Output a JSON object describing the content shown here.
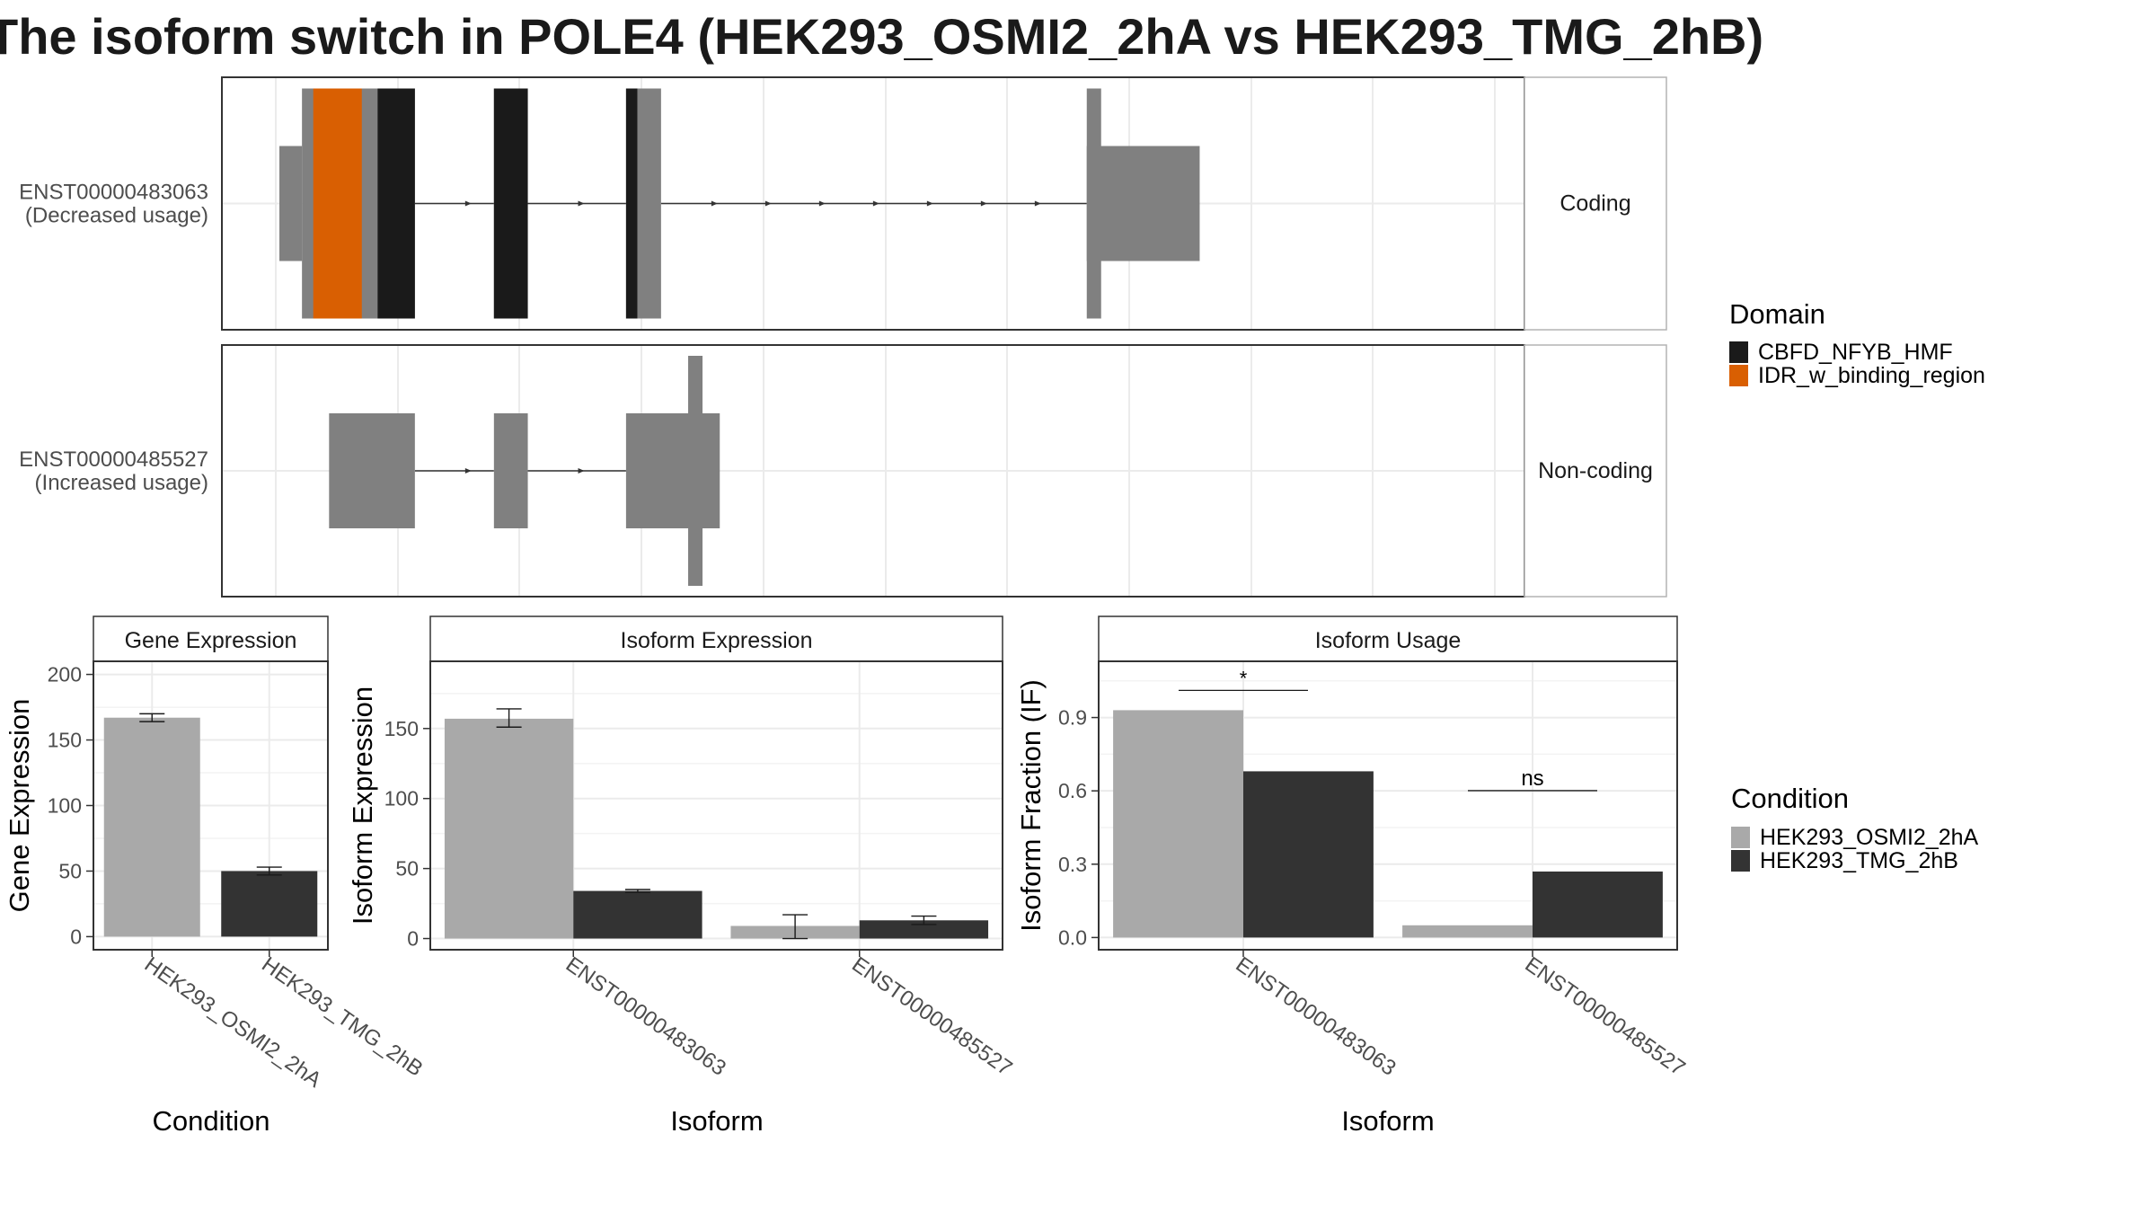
{
  "title": "The isoform switch in POLE4 (HEK293_OSMI2_2hA vs HEK293_TMG_2hB)",
  "colors": {
    "CBFD_NFYB_HMF": "#1a1a1a",
    "IDR_w_binding_region": "#d95f02",
    "exon": "#808080",
    "HEK293_OSMI2_2hA": "#a9a9a9",
    "HEK293_TMG_2hB": "#333333"
  },
  "transcripts": [
    {
      "id": "ENST00000483063",
      "usage": "(Decreased usage)",
      "strip": "Coding",
      "coding": true,
      "exons": [
        {
          "start": 0,
          "end": 20,
          "cds": false
        },
        {
          "start": 20,
          "end": 120,
          "cds": true
        },
        {
          "start": 190,
          "end": 220,
          "cds": true
        },
        {
          "start": 307,
          "end": 338,
          "cds": true
        },
        {
          "start": 715,
          "end": 815,
          "cds": false
        }
      ],
      "domains": [
        {
          "name": "IDR_w_binding_region",
          "start": 30,
          "end": 73
        },
        {
          "name": "CBFD_NFYB_HMF",
          "start": 87,
          "end": 120
        },
        {
          "name": "CBFD_NFYB_HMF",
          "start": 190,
          "end": 220
        },
        {
          "name": "CBFD_NFYB_HMF",
          "start": 307,
          "end": 317
        }
      ]
    },
    {
      "id": "ENST00000485527",
      "usage": "(Increased usage)",
      "strip": "Non-coding",
      "coding": false,
      "exons": [
        {
          "start": 44,
          "end": 120,
          "cds": false
        },
        {
          "start": 190,
          "end": 220,
          "cds": false
        },
        {
          "start": 307,
          "end": 390,
          "cds": false
        }
      ],
      "domains": []
    }
  ],
  "legends": {
    "domain_title": "Domain",
    "domain_items": [
      "CBFD_NFYB_HMF",
      "IDR_w_binding_region"
    ],
    "condition_title": "Condition",
    "condition_items": [
      "HEK293_OSMI2_2hA",
      "HEK293_TMG_2hB"
    ]
  },
  "chart_data": [
    {
      "type": "bar",
      "title": "Gene Expression",
      "xlabel": "Condition",
      "ylabel": "Gene Expression",
      "categories": [
        "HEK293_OSMI2_2hA",
        "HEK293_TMG_2hB"
      ],
      "values": [
        167,
        50
      ],
      "errors": [
        [
          164,
          170
        ],
        [
          47,
          53
        ]
      ],
      "ylim": [
        -10,
        210
      ],
      "yticks": [
        0,
        50,
        100,
        150,
        200
      ],
      "grid": true
    },
    {
      "type": "bar",
      "title": "Isoform Expression",
      "xlabel": "Isoform",
      "ylabel": "Isoform Expression",
      "categories": [
        "ENST00000483063",
        "ENST00000485527"
      ],
      "series": [
        {
          "name": "HEK293_OSMI2_2hA",
          "values": [
            157,
            9
          ],
          "errors": [
            [
              151,
              164
            ],
            [
              0,
              17
            ]
          ]
        },
        {
          "name": "HEK293_TMG_2hB",
          "values": [
            34,
            13
          ],
          "errors": [
            [
              33,
              35
            ],
            [
              10,
              16
            ]
          ]
        }
      ],
      "ylim": [
        -8,
        198
      ],
      "yticks": [
        0,
        50,
        100,
        150
      ],
      "grid": true
    },
    {
      "type": "bar",
      "title": "Isoform Usage",
      "xlabel": "Isoform",
      "ylabel": "Isoform Fraction (IF)",
      "categories": [
        "ENST00000483063",
        "ENST00000485527"
      ],
      "series": [
        {
          "name": "HEK293_OSMI2_2hA",
          "values": [
            0.93,
            0.05
          ]
        },
        {
          "name": "HEK293_TMG_2hB",
          "values": [
            0.68,
            0.27
          ]
        }
      ],
      "significance": [
        "*",
        "ns"
      ],
      "ylim": [
        -0.05,
        1.13
      ],
      "yticks": [
        0.0,
        0.3,
        0.6,
        0.9
      ],
      "ytick_labels": [
        "0.0",
        "0.3",
        "0.6",
        "0.9"
      ],
      "grid": true
    }
  ]
}
